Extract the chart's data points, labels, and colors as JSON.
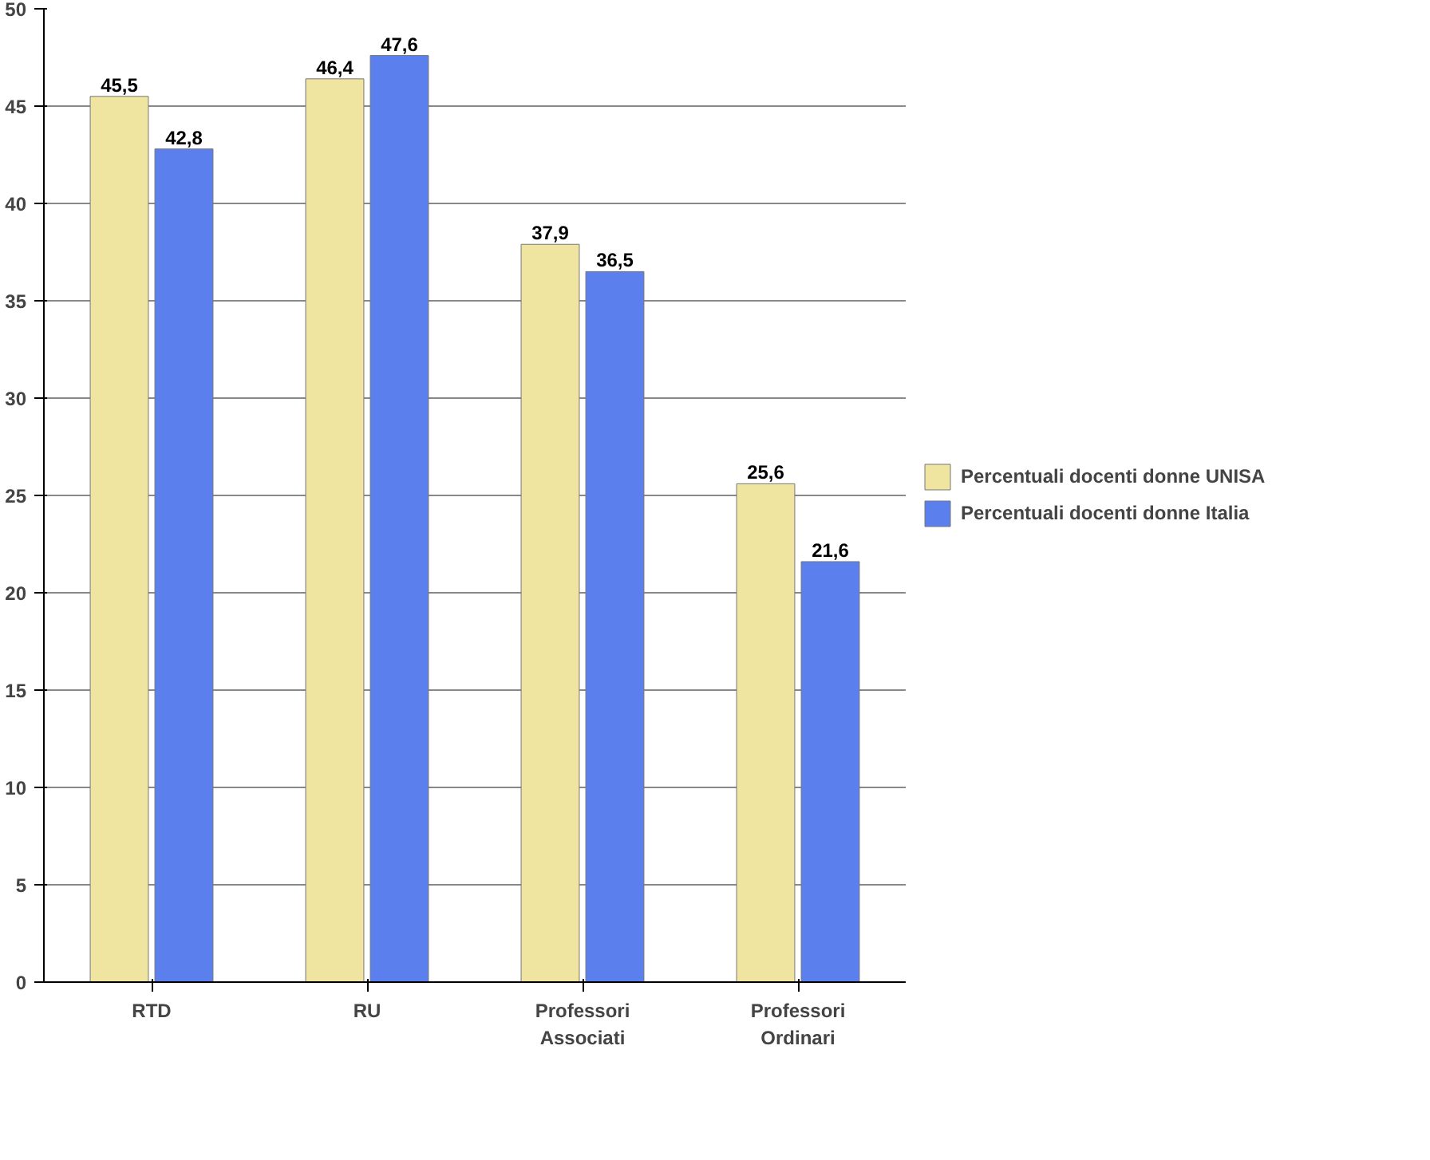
{
  "chart_data": {
    "type": "bar",
    "categories": [
      "RTD",
      "RU",
      "Professori\nAssociati",
      "Professori\nOrdinari"
    ],
    "series": [
      {
        "name": "Percentuali docenti donne UNISA",
        "color": "#efe4a0",
        "values": [
          45.5,
          46.4,
          37.9,
          25.6
        ],
        "value_labels": [
          "45,5",
          "46,4",
          "37,9",
          "25,6"
        ]
      },
      {
        "name": "Percentuali docenti donne Italia",
        "color": "#5b80ee",
        "values": [
          42.8,
          47.6,
          36.5,
          21.6
        ],
        "value_labels": [
          "42,8",
          "47,6",
          "36,5",
          "21,6"
        ]
      }
    ],
    "ylim": [
      0,
      50
    ],
    "yticks": [
      0,
      5,
      10,
      15,
      20,
      25,
      30,
      35,
      40,
      45,
      50
    ],
    "grid": "y",
    "legend": "right"
  }
}
